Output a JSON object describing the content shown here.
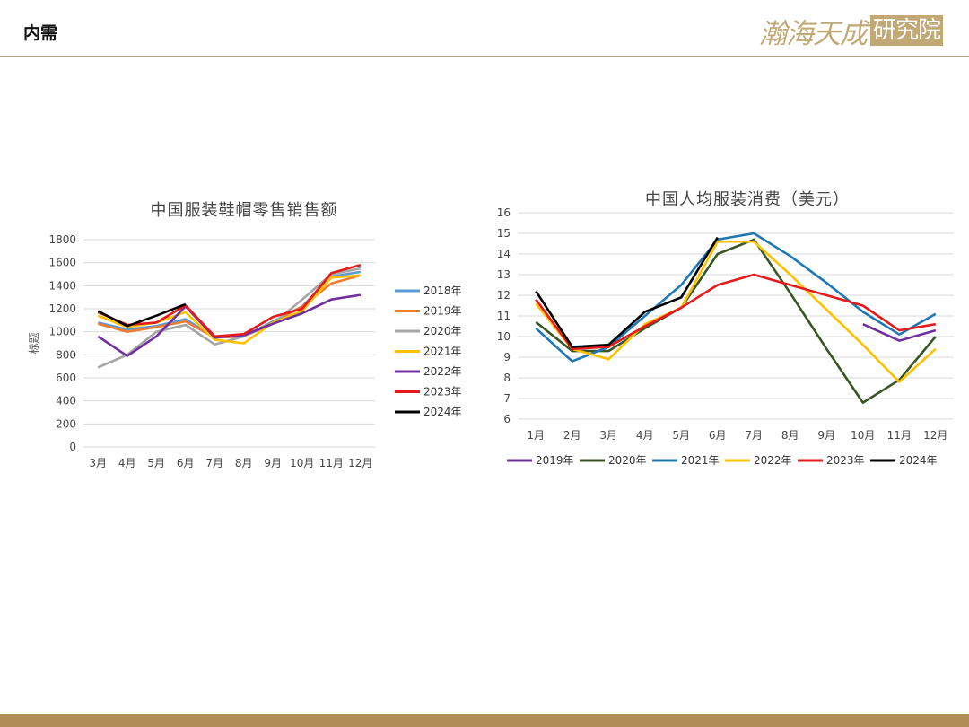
{
  "header": {
    "title": "内需",
    "logo_main": "瀚海天成",
    "logo_box": "研究院"
  },
  "colors": {
    "header_line": "#b5a37a",
    "footer": "#b08d57",
    "logo": "#c2a874"
  },
  "chart_data": [
    {
      "type": "line",
      "title": "中国服装鞋帽零售销售额",
      "xlabel": "",
      "ylabel": "标题",
      "categories": [
        "3月",
        "4月",
        "5月",
        "6月",
        "7月",
        "8月",
        "9月",
        "10月",
        "11月",
        "12月"
      ],
      "ylim": [
        0,
        1800
      ],
      "yticks": [
        0,
        200,
        400,
        600,
        800,
        1000,
        1200,
        1400,
        1600,
        1800
      ],
      "grid": true,
      "legend_position": "right",
      "series": [
        {
          "name": "2018年",
          "color": "#5b9bd5",
          "values": [
            1080,
            1020,
            1050,
            1110,
            950,
            960,
            1090,
            1220,
            1480,
            1520
          ]
        },
        {
          "name": "2019年",
          "color": "#ed7d31",
          "values": [
            1070,
            1000,
            1040,
            1090,
            950,
            960,
            1080,
            1220,
            1420,
            1490
          ]
        },
        {
          "name": "2020年",
          "color": "#a5a5a5",
          "values": [
            690,
            800,
            1000,
            1060,
            890,
            960,
            1070,
            1280,
            1500,
            1550
          ]
        },
        {
          "name": "2021年",
          "color": "#ffc000",
          "values": [
            1140,
            1040,
            1080,
            1170,
            930,
            900,
            1080,
            1180,
            1470,
            1490
          ]
        },
        {
          "name": "2022年",
          "color": "#7030a0",
          "values": [
            960,
            790,
            960,
            1220,
            950,
            970,
            1070,
            1160,
            1280,
            1320
          ]
        },
        {
          "name": "2023年",
          "color": "#e41a1c",
          "values": [
            1170,
            1060,
            1080,
            1230,
            960,
            980,
            1130,
            1200,
            1510,
            1580
          ]
        },
        {
          "name": "2024年",
          "color": "#000000",
          "values": [
            1180,
            1050,
            1140,
            1240,
            null,
            null,
            null,
            null,
            null,
            null
          ]
        }
      ]
    },
    {
      "type": "line",
      "title": "中国人均服装消费（美元）",
      "xlabel": "",
      "ylabel": "",
      "categories": [
        "1月",
        "2月",
        "3月",
        "4月",
        "5月",
        "6月",
        "7月",
        "8月",
        "9月",
        "10月",
        "11月",
        "12月"
      ],
      "ylim": [
        6,
        16
      ],
      "yticks": [
        6,
        7,
        8,
        9,
        10,
        11,
        12,
        13,
        14,
        15,
        16
      ],
      "grid": true,
      "legend_position": "bottom",
      "series": [
        {
          "name": "2019年",
          "color": "#7030a0",
          "values": [
            null,
            null,
            null,
            null,
            null,
            null,
            null,
            null,
            null,
            10.6,
            9.8,
            10.3
          ]
        },
        {
          "name": "2020年",
          "color": "#375623",
          "values": [
            10.7,
            9.3,
            9.3,
            10.4,
            11.4,
            14.0,
            14.7,
            12.1,
            9.4,
            6.8,
            7.9,
            10.0
          ]
        },
        {
          "name": "2021年",
          "color": "#1f78b4",
          "values": [
            10.4,
            8.8,
            9.5,
            11.0,
            12.5,
            14.7,
            15.0,
            13.9,
            12.6,
            11.2,
            10.1,
            11.1
          ]
        },
        {
          "name": "2022年",
          "color": "#ffc000",
          "values": [
            11.6,
            9.4,
            8.9,
            10.6,
            11.4,
            14.6,
            14.6,
            13.0,
            11.3,
            9.6,
            7.8,
            9.4
          ]
        },
        {
          "name": "2023年",
          "color": "#e41a1c",
          "values": [
            11.8,
            9.4,
            9.5,
            10.5,
            11.4,
            12.5,
            13.0,
            12.5,
            12.0,
            11.5,
            10.3,
            10.6
          ]
        },
        {
          "name": "2024年",
          "color": "#000000",
          "values": [
            12.2,
            9.5,
            9.6,
            11.2,
            11.9,
            14.8,
            null,
            null,
            null,
            null,
            null,
            null
          ]
        }
      ]
    }
  ]
}
